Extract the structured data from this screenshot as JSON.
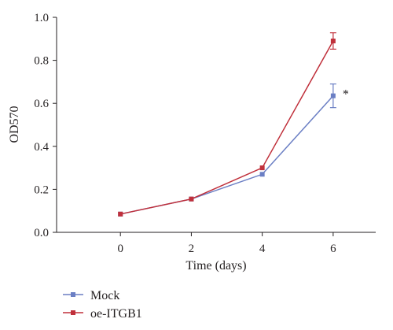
{
  "chart_data": {
    "type": "line",
    "title": "",
    "xlabel": "Time (days)",
    "ylabel": "OD570",
    "x": [
      0,
      2,
      4,
      6
    ],
    "x_ticks": [
      "0",
      "2",
      "4",
      "6"
    ],
    "xlim": [
      -1.8,
      7.2
    ],
    "y_ticks": [
      "0.0",
      "0.2",
      "0.4",
      "0.6",
      "0.8",
      "1.0"
    ],
    "ylim": [
      0,
      1.0
    ],
    "grid": false,
    "legend_position": "bottom-left",
    "series": [
      {
        "name": "Mock",
        "color": "#6b7fc4",
        "marker": "square",
        "values": [
          0.085,
          0.155,
          0.27,
          0.635
        ],
        "error": [
          null,
          null,
          null,
          0.055
        ]
      },
      {
        "name": "oe-ITGB1",
        "color": "#c0303b",
        "marker": "square",
        "values": [
          0.085,
          0.155,
          0.3,
          0.89
        ],
        "error": [
          null,
          null,
          null,
          0.038
        ]
      }
    ],
    "annotations": [
      {
        "text": "*",
        "x": 6,
        "y": 0.635,
        "series": "Mock"
      }
    ]
  }
}
